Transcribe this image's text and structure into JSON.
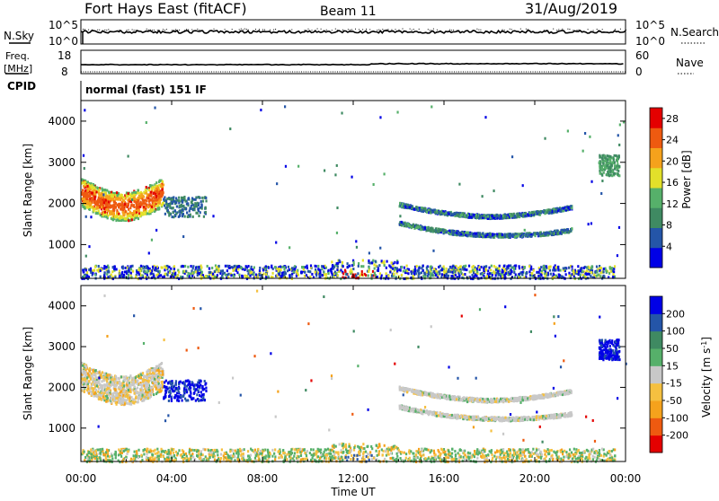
{
  "header": {
    "title": "Fort Hays East (fitACF)",
    "beam": "Beam 11",
    "date": "31/Aug/2019"
  },
  "noise_panel": {
    "left_label": "N.Sky",
    "right_label": "N.Search",
    "left_ticks": [
      "10^5",
      "10^0"
    ],
    "right_ticks": [
      "10^5",
      "10^0"
    ]
  },
  "freq_panel": {
    "left_label_top": "Freq.",
    "left_label_unit": "[MHz]",
    "right_label": "Nave",
    "left_ticks": [
      "18",
      "8"
    ],
    "right_ticks": [
      "60",
      "0"
    ]
  },
  "cpid": {
    "label": "CPID",
    "text": "normal (fast) 151 IF"
  },
  "ylabel": "Slant Range [km]",
  "xlabel": "Time UT",
  "chart_data": [
    {
      "type": "heatmap",
      "name": "power",
      "x_ticks": [
        "00:00",
        "04:00",
        "08:00",
        "12:00",
        "16:00",
        "20:00",
        "00:00"
      ],
      "y_ticks": [
        1000,
        2000,
        3000,
        4000
      ],
      "ylim": [
        180,
        4500
      ],
      "xlim_hours": [
        0,
        24
      ],
      "colorbar": {
        "label": "Power [dB]",
        "ticks": [
          4,
          8,
          12,
          16,
          20,
          24,
          28
        ],
        "range": [
          0,
          30
        ]
      },
      "colors": [
        "#0000e6",
        "#2455a8",
        "#3f8a62",
        "#56b06a",
        "#e2e02a",
        "#f5a21c",
        "#ee5a10",
        "#e40000"
      ],
      "features": [
        {
          "region": "patch near 2000-2500 km",
          "hours": [
            0.0,
            3.5
          ],
          "range_km": [
            1700,
            2600
          ],
          "peak": 28
        },
        {
          "region": "arc near 1200-1700 km",
          "hours": [
            14.0,
            22.0
          ],
          "range_km": [
            1100,
            1900
          ],
          "peak": 12
        },
        {
          "region": "near-range scatter",
          "hours": [
            0.0,
            23.5
          ],
          "range_km": [
            200,
            600
          ],
          "peak": 24
        }
      ]
    },
    {
      "type": "heatmap",
      "name": "velocity",
      "x_ticks": [
        "00:00",
        "04:00",
        "08:00",
        "12:00",
        "16:00",
        "20:00",
        "00:00"
      ],
      "y_ticks": [
        1000,
        2000,
        3000,
        4000
      ],
      "ylim": [
        180,
        4500
      ],
      "xlim_hours": [
        0,
        24
      ],
      "colorbar": {
        "label": "Velocity [m s^-1]",
        "ticks": [
          200,
          100,
          50,
          15,
          -15,
          -50,
          -100,
          -200
        ],
        "range": [
          -250,
          250
        ]
      },
      "colors": [
        "#0000e6",
        "#2455a8",
        "#3f8a62",
        "#56b06a",
        "#c8c8c8",
        "#f5c040",
        "#f5a21c",
        "#ee5a10",
        "#e40000"
      ]
    }
  ]
}
